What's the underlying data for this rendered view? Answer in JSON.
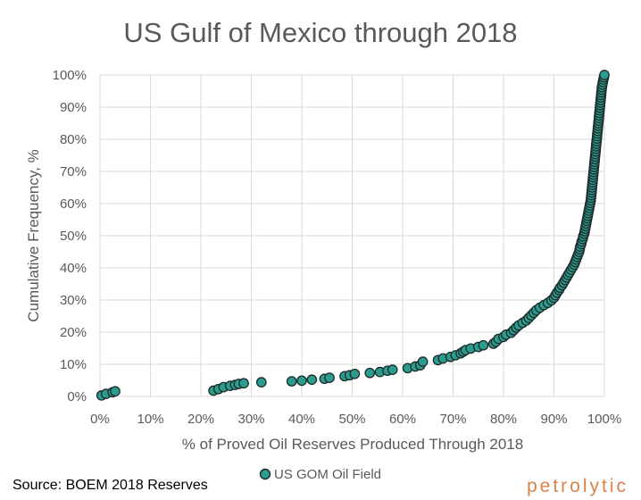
{
  "chart_data": {
    "type": "scatter",
    "title": "US Gulf of Mexico through 2018",
    "xlabel": "% of Proved Oil Reserves Produced Through 2018",
    "ylabel": "Cumulative Frequency, %",
    "xlim": [
      0,
      100
    ],
    "ylim": [
      0,
      100
    ],
    "x_ticks": [
      "0%",
      "10%",
      "20%",
      "30%",
      "40%",
      "50%",
      "60%",
      "70%",
      "80%",
      "90%",
      "100%"
    ],
    "y_ticks": [
      "0%",
      "10%",
      "20%",
      "30%",
      "40%",
      "50%",
      "60%",
      "70%",
      "80%",
      "90%",
      "100%"
    ],
    "grid": true,
    "legend_position": "bottom",
    "series": [
      {
        "name": "US GOM Oil Field",
        "color": "#2a9d8f",
        "points": [
          [
            0.3,
            0.3
          ],
          [
            1.2,
            0.8
          ],
          [
            2.5,
            1.3
          ],
          [
            3.0,
            1.6
          ],
          [
            22.5,
            1.8
          ],
          [
            23.5,
            2.3
          ],
          [
            24.5,
            2.9
          ],
          [
            25.8,
            3.3
          ],
          [
            26.8,
            3.6
          ],
          [
            27.5,
            3.9
          ],
          [
            28.5,
            4.1
          ],
          [
            32.0,
            4.4
          ],
          [
            38.0,
            4.7
          ],
          [
            40.0,
            4.9
          ],
          [
            42.0,
            5.2
          ],
          [
            44.5,
            5.5
          ],
          [
            45.5,
            5.8
          ],
          [
            48.5,
            6.3
          ],
          [
            49.5,
            6.6
          ],
          [
            50.5,
            7.0
          ],
          [
            53.5,
            7.3
          ],
          [
            55.5,
            7.6
          ],
          [
            57.0,
            8.0
          ],
          [
            58.0,
            8.3
          ],
          [
            61.0,
            8.8
          ],
          [
            62.5,
            9.3
          ],
          [
            63.5,
            9.7
          ],
          [
            64.0,
            10.8
          ],
          [
            67.0,
            11.3
          ],
          [
            68.0,
            11.8
          ],
          [
            69.5,
            12.3
          ],
          [
            70.5,
            12.8
          ],
          [
            71.5,
            13.4
          ],
          [
            72.0,
            13.9
          ],
          [
            72.5,
            14.4
          ],
          [
            73.5,
            14.9
          ],
          [
            75.0,
            15.4
          ],
          [
            76.0,
            15.9
          ],
          [
            78.0,
            16.4
          ],
          [
            78.5,
            17.0
          ],
          [
            79.0,
            17.9
          ],
          [
            80.0,
            18.5
          ],
          [
            80.5,
            19.2
          ],
          [
            81.5,
            19.8
          ],
          [
            82.0,
            20.6
          ],
          [
            82.5,
            21.4
          ],
          [
            83.0,
            22.1
          ],
          [
            83.8,
            22.9
          ],
          [
            84.5,
            23.6
          ],
          [
            85.0,
            24.4
          ],
          [
            85.5,
            25.2
          ],
          [
            86.0,
            26.0
          ],
          [
            86.5,
            26.8
          ],
          [
            87.2,
            27.6
          ],
          [
            88.0,
            28.4
          ],
          [
            88.8,
            29.1
          ],
          [
            89.5,
            29.9
          ],
          [
            90.0,
            30.7
          ],
          [
            90.3,
            31.5
          ],
          [
            90.6,
            32.3
          ],
          [
            91.0,
            33.1
          ],
          [
            91.2,
            33.8
          ],
          [
            91.6,
            34.6
          ],
          [
            91.9,
            35.4
          ],
          [
            92.2,
            36.2
          ],
          [
            92.5,
            37.0
          ],
          [
            92.8,
            37.8
          ],
          [
            93.1,
            38.6
          ],
          [
            93.4,
            39.4
          ],
          [
            93.7,
            40.2
          ],
          [
            94.0,
            41.0
          ],
          [
            94.2,
            41.8
          ],
          [
            94.4,
            42.6
          ],
          [
            94.6,
            43.4
          ],
          [
            94.8,
            44.2
          ],
          [
            95.0,
            45.0
          ],
          [
            95.1,
            45.8
          ],
          [
            95.2,
            46.6
          ],
          [
            95.4,
            47.4
          ],
          [
            95.5,
            48.2
          ],
          [
            95.7,
            49.0
          ],
          [
            95.8,
            49.8
          ],
          [
            96.0,
            50.6
          ],
          [
            96.1,
            51.4
          ],
          [
            96.2,
            52.2
          ],
          [
            96.3,
            53.0
          ],
          [
            96.4,
            53.8
          ],
          [
            96.5,
            54.6
          ],
          [
            96.6,
            55.4
          ],
          [
            96.7,
            56.2
          ],
          [
            96.8,
            57.0
          ],
          [
            96.9,
            57.8
          ],
          [
            97.0,
            58.6
          ],
          [
            97.1,
            59.4
          ],
          [
            97.2,
            60.2
          ],
          [
            97.3,
            61.0
          ],
          [
            97.35,
            61.8
          ],
          [
            97.4,
            62.6
          ],
          [
            97.45,
            63.4
          ],
          [
            97.5,
            64.2
          ],
          [
            97.55,
            65.0
          ],
          [
            97.6,
            65.8
          ],
          [
            97.65,
            66.6
          ],
          [
            97.7,
            67.4
          ],
          [
            97.75,
            68.2
          ],
          [
            97.8,
            69.0
          ],
          [
            97.85,
            69.8
          ],
          [
            97.9,
            70.6
          ],
          [
            97.95,
            71.4
          ],
          [
            98.0,
            72.2
          ],
          [
            98.05,
            73.0
          ],
          [
            98.1,
            73.8
          ],
          [
            98.15,
            74.6
          ],
          [
            98.2,
            75.4
          ],
          [
            98.25,
            76.2
          ],
          [
            98.3,
            77.0
          ],
          [
            98.35,
            77.8
          ],
          [
            98.4,
            78.6
          ],
          [
            98.45,
            79.4
          ],
          [
            98.5,
            80.2
          ],
          [
            98.55,
            81.0
          ],
          [
            98.6,
            81.8
          ],
          [
            98.65,
            82.6
          ],
          [
            98.7,
            83.4
          ],
          [
            98.75,
            84.2
          ],
          [
            98.8,
            85.0
          ],
          [
            98.85,
            85.8
          ],
          [
            98.9,
            86.6
          ],
          [
            98.95,
            87.4
          ],
          [
            99.0,
            88.2
          ],
          [
            99.05,
            89.0
          ],
          [
            99.1,
            89.8
          ],
          [
            99.15,
            90.6
          ],
          [
            99.2,
            91.4
          ],
          [
            99.25,
            92.2
          ],
          [
            99.3,
            93.0
          ],
          [
            99.35,
            93.8
          ],
          [
            99.4,
            94.6
          ],
          [
            99.45,
            95.4
          ],
          [
            99.5,
            96.2
          ],
          [
            99.6,
            97.0
          ],
          [
            99.7,
            97.8
          ],
          [
            99.8,
            98.6
          ],
          [
            99.9,
            99.3
          ],
          [
            100.0,
            100.0
          ]
        ]
      }
    ]
  },
  "footer": {
    "source": "Source: BOEM 2018 Reserves",
    "brand": "petrolytic"
  }
}
